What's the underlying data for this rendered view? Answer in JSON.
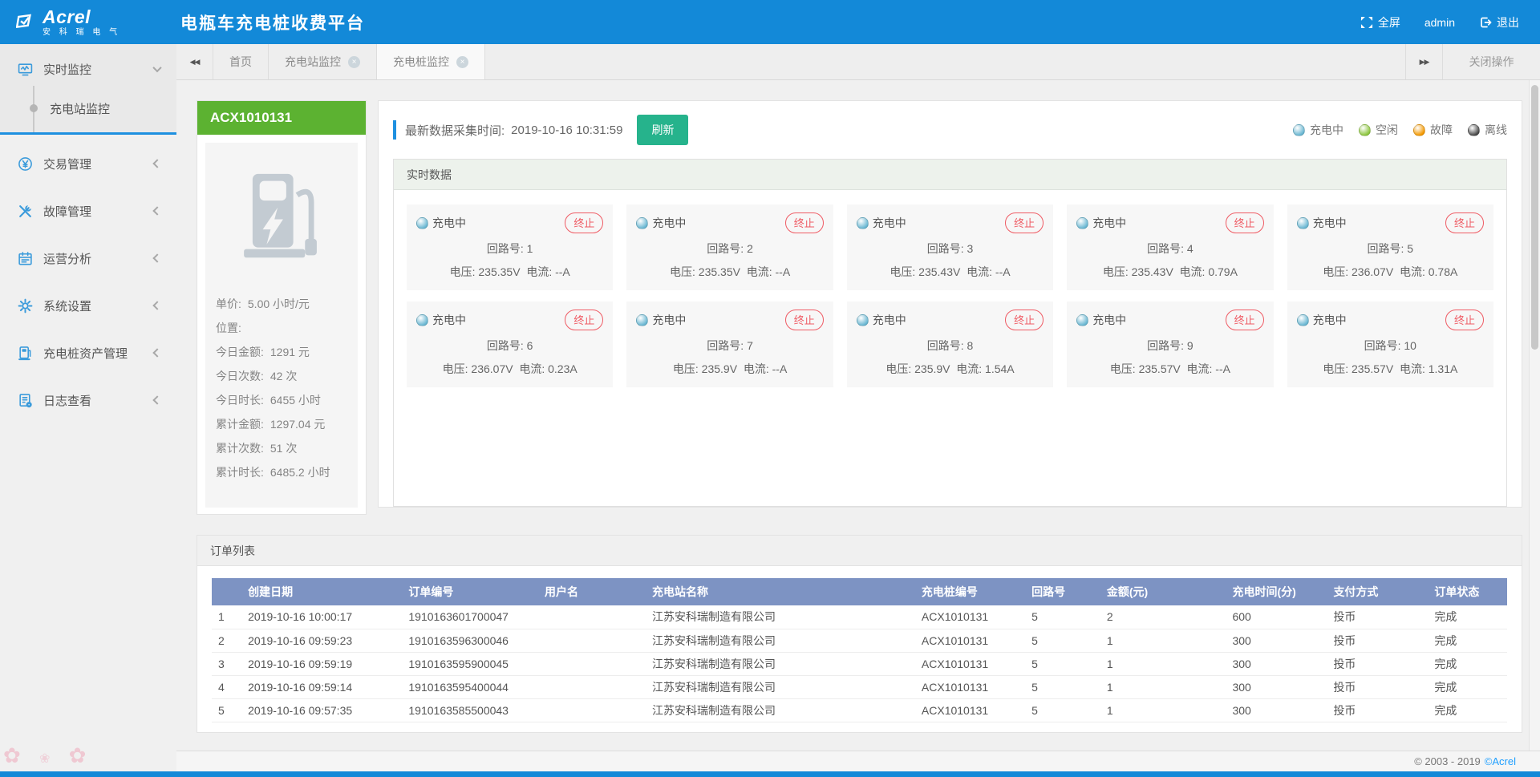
{
  "header": {
    "logo_text": "Acrel",
    "logo_subtext": "安 科 瑞 电 气",
    "app_title": "电瓶车充电桩收费平台",
    "fullscreen_label": "全屏",
    "username": "admin",
    "logout_label": "退出"
  },
  "tab_bar": {
    "tabs": [
      {
        "label": "首页",
        "closable": false,
        "active": false
      },
      {
        "label": "充电站监控",
        "closable": true,
        "active": false
      },
      {
        "label": "充电桩监控",
        "closable": true,
        "active": true
      }
    ],
    "close_actions_label": "关闭操作"
  },
  "sidebar": {
    "items": [
      {
        "label": "实时监控",
        "icon": "realtime-monitor-icon",
        "state": "expanded",
        "children": [
          {
            "label": "充电站监控",
            "active": true
          }
        ]
      },
      {
        "label": "交易管理",
        "icon": "transaction-icon",
        "state": "collapsed"
      },
      {
        "label": "故障管理",
        "icon": "fault-icon",
        "state": "collapsed"
      },
      {
        "label": "运营分析",
        "icon": "analysis-icon",
        "state": "collapsed"
      },
      {
        "label": "系统设置",
        "icon": "settings-icon",
        "state": "collapsed"
      },
      {
        "label": "充电桩资产管理",
        "icon": "pile-asset-icon",
        "state": "collapsed"
      },
      {
        "label": "日志查看",
        "icon": "log-icon",
        "state": "collapsed"
      }
    ]
  },
  "station_panel": {
    "station_id": "ACX1010131",
    "header_color": "#5cb231",
    "stats": [
      {
        "label": "单价:",
        "value": "5.00 小时/元"
      },
      {
        "label": "位置:",
        "value": ""
      },
      {
        "label": "今日金额:",
        "value": "1291 元"
      },
      {
        "label": "今日次数:",
        "value": "42 次"
      },
      {
        "label": "今日时长:",
        "value": "6455 小时"
      },
      {
        "label": "累计金额:",
        "value": "1297.04 元"
      },
      {
        "label": "累计次数:",
        "value": "51 次"
      },
      {
        "label": "累计时长:",
        "value": "6485.2 小时"
      }
    ]
  },
  "realtime": {
    "collect_time_label": "最新数据采集时间:",
    "collect_time": "2019-10-16 10:31:59",
    "refresh_label": "刷新",
    "refresh_color": "#26b38c",
    "section_title": "实时数据",
    "terminate_label": "终止",
    "circuit_label": "回路号:",
    "voltage_label": "电压:",
    "current_label": "电流:",
    "status_colors": {
      "charging": "#6ab7d2",
      "idle": "#8dc63f",
      "fault": "#f39800",
      "offline": "#4a4a4a"
    },
    "legend": [
      {
        "label": "充电中",
        "color": "#6ab7d2"
      },
      {
        "label": "空闲",
        "color": "#8dc63f"
      },
      {
        "label": "故障",
        "color": "#f39800"
      },
      {
        "label": "离线",
        "color": "#4a4a4a"
      }
    ],
    "cards": [
      {
        "status": "充电中",
        "circuit": "1",
        "voltage": "235.35V",
        "current": "--A"
      },
      {
        "status": "充电中",
        "circuit": "2",
        "voltage": "235.35V",
        "current": "--A"
      },
      {
        "status": "充电中",
        "circuit": "3",
        "voltage": "235.43V",
        "current": "--A"
      },
      {
        "status": "充电中",
        "circuit": "4",
        "voltage": "235.43V",
        "current": "0.79A"
      },
      {
        "status": "充电中",
        "circuit": "5",
        "voltage": "236.07V",
        "current": "0.78A"
      },
      {
        "status": "充电中",
        "circuit": "6",
        "voltage": "236.07V",
        "current": "0.23A"
      },
      {
        "status": "充电中",
        "circuit": "7",
        "voltage": "235.9V",
        "current": "--A"
      },
      {
        "status": "充电中",
        "circuit": "8",
        "voltage": "235.9V",
        "current": "1.54A"
      },
      {
        "status": "充电中",
        "circuit": "9",
        "voltage": "235.57V",
        "current": "--A"
      },
      {
        "status": "充电中",
        "circuit": "10",
        "voltage": "235.57V",
        "current": "1.31A"
      }
    ]
  },
  "orders": {
    "section_title": "订单列表",
    "columns": [
      "创建日期",
      "订单编号",
      "用户名",
      "充电站名称",
      "充电桩编号",
      "回路号",
      "金额(元)",
      "充电时间(分)",
      "支付方式",
      "订单状态"
    ],
    "rows": [
      {
        "index": "1",
        "created": "2019-10-16 10:00:17",
        "order_no": "1910163601700047",
        "user": "",
        "station": "江苏安科瑞制造有限公司",
        "pile": "ACX1010131",
        "circuit": "5",
        "amount": "2",
        "minutes": "600",
        "payment": "投币",
        "status": "完成"
      },
      {
        "index": "2",
        "created": "2019-10-16 09:59:23",
        "order_no": "1910163596300046",
        "user": "",
        "station": "江苏安科瑞制造有限公司",
        "pile": "ACX1010131",
        "circuit": "5",
        "amount": "1",
        "minutes": "300",
        "payment": "投币",
        "status": "完成"
      },
      {
        "index": "3",
        "created": "2019-10-16 09:59:19",
        "order_no": "1910163595900045",
        "user": "",
        "station": "江苏安科瑞制造有限公司",
        "pile": "ACX1010131",
        "circuit": "5",
        "amount": "1",
        "minutes": "300",
        "payment": "投币",
        "status": "完成"
      },
      {
        "index": "4",
        "created": "2019-10-16 09:59:14",
        "order_no": "1910163595400044",
        "user": "",
        "station": "江苏安科瑞制造有限公司",
        "pile": "ACX1010131",
        "circuit": "5",
        "amount": "1",
        "minutes": "300",
        "payment": "投币",
        "status": "完成"
      },
      {
        "index": "5",
        "created": "2019-10-16 09:57:35",
        "order_no": "1910163585500043",
        "user": "",
        "station": "江苏安科瑞制造有限公司",
        "pile": "ACX1010131",
        "circuit": "5",
        "amount": "1",
        "minutes": "300",
        "payment": "投币",
        "status": "完成"
      }
    ]
  },
  "footer": {
    "copyright": "© 2003 - 2019",
    "brand": "©Acrel"
  },
  "colors": {
    "header_blue": "#1389d8",
    "table_header_blue": "#7d93c3",
    "accent_green": "#5cb231",
    "terminate_red": "#ef5b64"
  }
}
